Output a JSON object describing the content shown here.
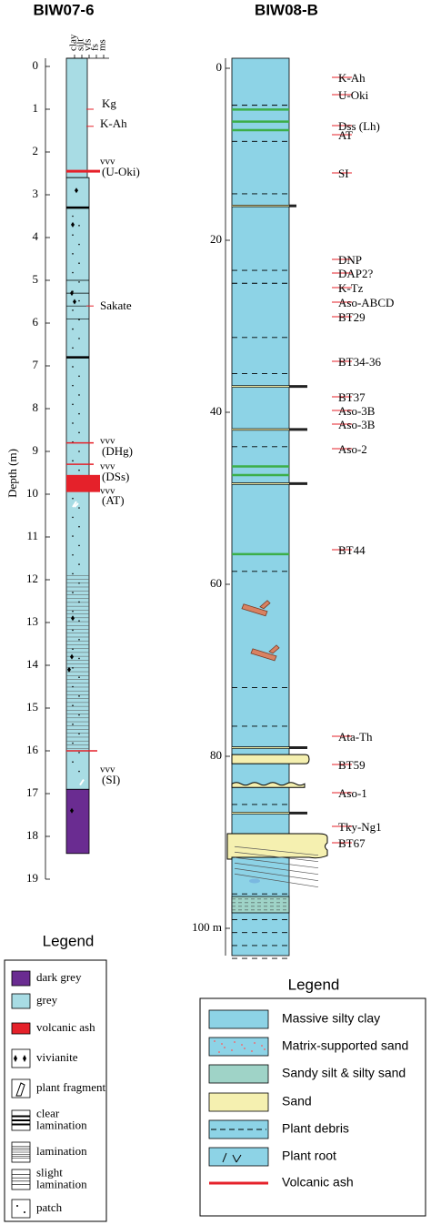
{
  "left": {
    "title": "BIW07-6",
    "depth_label": "Depth (m)",
    "grain_sizes": [
      "clay",
      "silt",
      "vfs",
      "fs",
      "ms"
    ],
    "depth_ticks": [
      0,
      1,
      2,
      3,
      4,
      5,
      6,
      7,
      8,
      9,
      10,
      11,
      12,
      13,
      14,
      15,
      16,
      17,
      18,
      19
    ],
    "annotations": [
      {
        "text": "Kg"
      },
      {
        "text": "K-Ah"
      },
      {
        "mark": "vvv",
        "text": "(U-Oki)"
      },
      {
        "text": "Sakate"
      },
      {
        "mark": "vvv",
        "text": "(DHg)"
      },
      {
        "mark": "vvv",
        "text": "(DSs)"
      },
      {
        "mark": "vvv",
        "text": "(AT)"
      },
      {
        "mark": "vvv",
        "text": "(SI)"
      }
    ]
  },
  "right": {
    "title": "BIW08-B",
    "depth_ticks": [
      0,
      20,
      40,
      60,
      80,
      {
        "value": 100,
        "label": "100 m"
      }
    ],
    "annotations": [
      "K-Ah",
      "U-Oki",
      "Dss (Lh)",
      "AT",
      "SI",
      "DNP",
      "DAP2?",
      "K-Tz",
      "Aso-ABCD",
      "BT29",
      "BT34-36",
      "BT37",
      "Aso-3B",
      "Aso-3B",
      "Aso-2",
      "BT44",
      "Ata-Th",
      "BT59",
      "Aso-1",
      "Tky-Ng1",
      "BT67"
    ]
  },
  "legend_left": {
    "title": "Legend",
    "items": [
      [
        "dark grey"
      ],
      [
        "grey"
      ],
      [
        "volcanic ash"
      ],
      [
        "vivianite"
      ],
      [
        "plant fragment"
      ],
      [
        "clear",
        "lamination"
      ],
      [
        "lamination"
      ],
      [
        "slight",
        "lamination"
      ],
      [
        "patch"
      ]
    ]
  },
  "legend_right": {
    "title": "Legend",
    "items": [
      "Massive silty clay",
      "Matrix-supported sand",
      "Sandy silt & silty sand",
      "Sand",
      "Plant debris",
      "Plant root",
      "Volcanic ash"
    ]
  }
}
